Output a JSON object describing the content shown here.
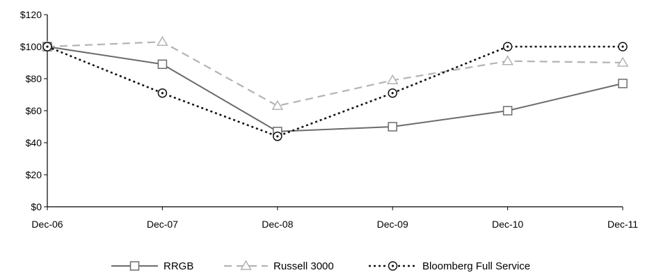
{
  "chart_data": {
    "type": "line",
    "categories": [
      "Dec-06",
      "Dec-07",
      "Dec-08",
      "Dec-09",
      "Dec-10",
      "Dec-11"
    ],
    "ylim": [
      0,
      120
    ],
    "yticks": [
      0,
      20,
      40,
      60,
      80,
      100,
      120
    ],
    "ytick_labels": [
      "$0",
      "$20",
      "$40",
      "$60",
      "$80",
      "$100",
      "$120"
    ],
    "grid": false,
    "legend_position": "bottom",
    "series": [
      {
        "name": "RRGB",
        "values": [
          100,
          89,
          47,
          50,
          60,
          77
        ],
        "color": "#6b6b6b",
        "marker": "square",
        "dash": "solid"
      },
      {
        "name": "Russell 3000",
        "values": [
          100,
          103,
          63,
          79,
          91,
          90
        ],
        "color": "#b3b3b3",
        "marker": "triangle",
        "dash": "dashed"
      },
      {
        "name": "Bloomberg Full Service",
        "values": [
          100,
          71,
          44,
          71,
          100,
          100
        ],
        "color": "#111111",
        "marker": "circle",
        "dash": "dotted"
      }
    ]
  }
}
